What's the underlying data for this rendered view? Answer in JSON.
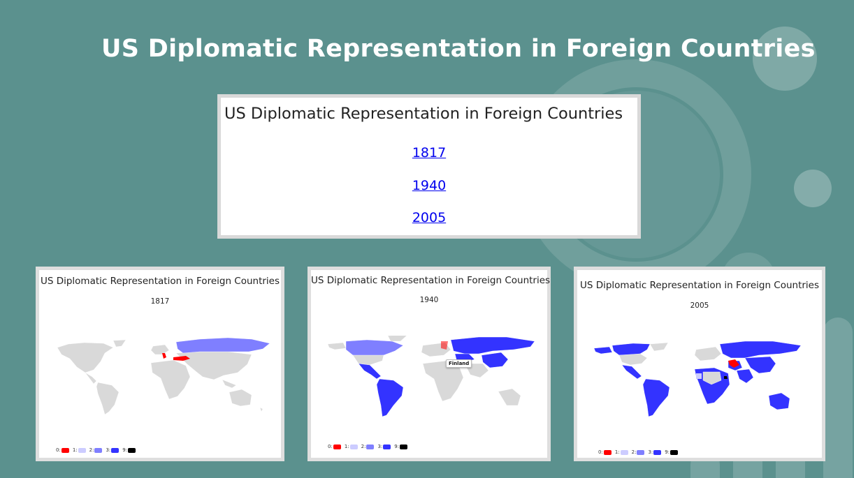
{
  "page": {
    "title": "US Diplomatic Representation in Foreign Countries"
  },
  "nav": {
    "title": "US Diplomatic Representation in Foreign Countries",
    "links": [
      "1817",
      "1940",
      "2005"
    ]
  },
  "legend": {
    "items": [
      {
        "label": "0:",
        "color": "#ff0000"
      },
      {
        "label": "1:",
        "color": "#ccccff"
      },
      {
        "label": "2:",
        "color": "#7f7fff"
      },
      {
        "label": "3:",
        "color": "#3333ff"
      },
      {
        "label": "9:",
        "color": "#000000"
      }
    ],
    "no_data_color": "#d9d9d9"
  },
  "maps": [
    {
      "title": "US Diplomatic Representation in Foreign Countries",
      "year": "1817",
      "tooltip": ""
    },
    {
      "title": "US Diplomatic Representation in Foreign Countries",
      "year": "1940",
      "tooltip": "Finland"
    },
    {
      "title": "US Diplomatic Representation in Foreign Countries",
      "year": "2005",
      "tooltip": ""
    }
  ]
}
